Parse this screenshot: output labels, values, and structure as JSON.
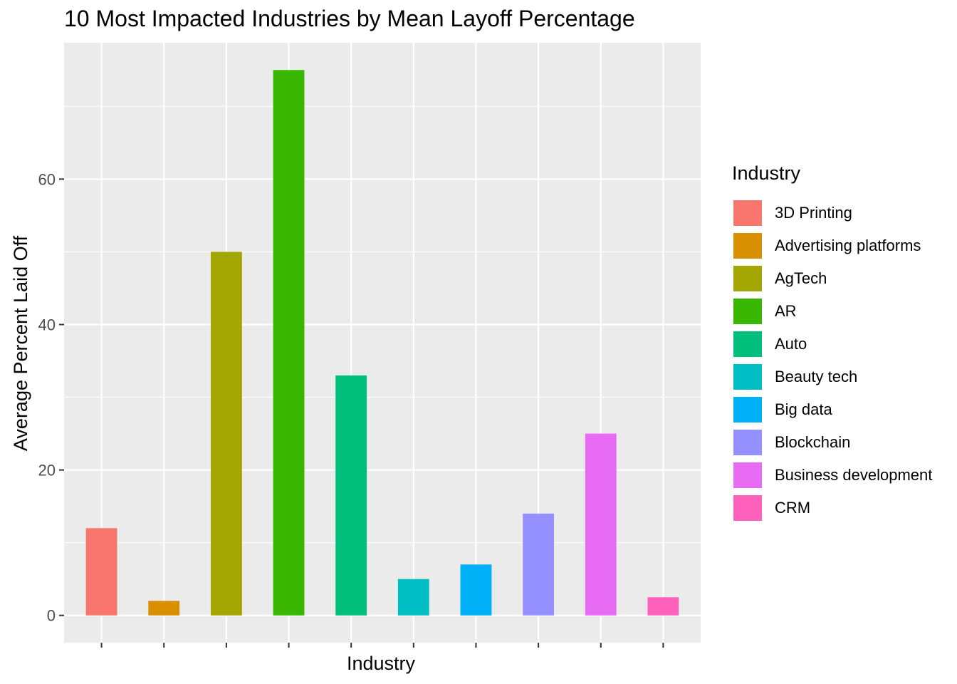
{
  "chart_data": {
    "type": "bar",
    "title": "10 Most Impacted Industries by Mean Layoff Percentage",
    "xlabel": "Industry",
    "ylabel": "Average Percent Laid Off",
    "categories": [
      "3D Printing",
      "Advertising platforms",
      "AgTech",
      "AR",
      "Auto",
      "Beauty tech",
      "Big data",
      "Blockchain",
      "Business development",
      "CRM"
    ],
    "values": [
      12,
      2,
      50,
      75,
      33,
      5,
      7,
      14,
      25,
      2.5
    ],
    "colors": [
      "#F8766D",
      "#D89000",
      "#A3A500",
      "#39B600",
      "#00BF7D",
      "#00BFC4",
      "#00B0F6",
      "#9590FF",
      "#E76BF3",
      "#FF62BC"
    ],
    "ylim": [
      -3.75,
      78.75
    ],
    "yticks": [
      0,
      20,
      40,
      60
    ],
    "x_tick_labels_shown": false,
    "grid": true,
    "panel_background": "#EBEBEB",
    "legend_title": "Industry",
    "legend_position": "right"
  }
}
